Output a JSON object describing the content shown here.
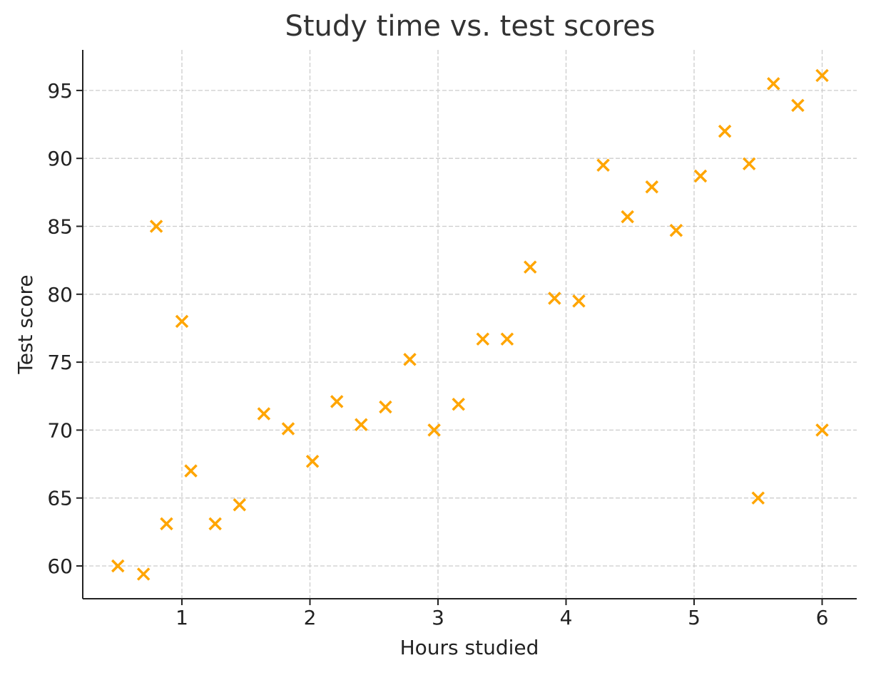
{
  "chart_data": {
    "type": "scatter",
    "title": "Study time vs. test scores",
    "xlabel": "Hours studied",
    "ylabel": "Test score",
    "xlim": [
      0.22,
      6.28
    ],
    "ylim": [
      57.6,
      98.1
    ],
    "xticks": [
      1,
      2,
      3,
      4,
      5,
      6
    ],
    "yticks": [
      60,
      65,
      70,
      75,
      80,
      85,
      90,
      95
    ],
    "grid": true,
    "marker": "x",
    "color": "#FFA500",
    "points": [
      [
        0.5,
        60.0
      ],
      [
        0.7,
        59.4
      ],
      [
        0.8,
        85.0
      ],
      [
        0.88,
        63.1
      ],
      [
        1.0,
        78.0
      ],
      [
        1.07,
        67.0
      ],
      [
        1.26,
        63.1
      ],
      [
        1.45,
        64.5
      ],
      [
        1.64,
        71.2
      ],
      [
        1.83,
        70.1
      ],
      [
        2.02,
        67.7
      ],
      [
        2.21,
        72.1
      ],
      [
        2.4,
        70.4
      ],
      [
        2.59,
        71.7
      ],
      [
        2.78,
        75.2
      ],
      [
        2.97,
        70.0
      ],
      [
        3.16,
        71.9
      ],
      [
        3.35,
        76.7
      ],
      [
        3.54,
        76.7
      ],
      [
        3.72,
        82.0
      ],
      [
        3.91,
        79.7
      ],
      [
        4.1,
        79.5
      ],
      [
        4.29,
        89.5
      ],
      [
        4.48,
        85.7
      ],
      [
        4.67,
        87.9
      ],
      [
        4.86,
        84.7
      ],
      [
        5.05,
        88.7
      ],
      [
        5.24,
        92.0
      ],
      [
        5.43,
        89.6
      ],
      [
        5.5,
        65.0
      ],
      [
        5.62,
        95.5
      ],
      [
        5.81,
        93.9
      ],
      [
        6.0,
        96.1
      ],
      [
        6.0,
        70.0
      ]
    ]
  }
}
